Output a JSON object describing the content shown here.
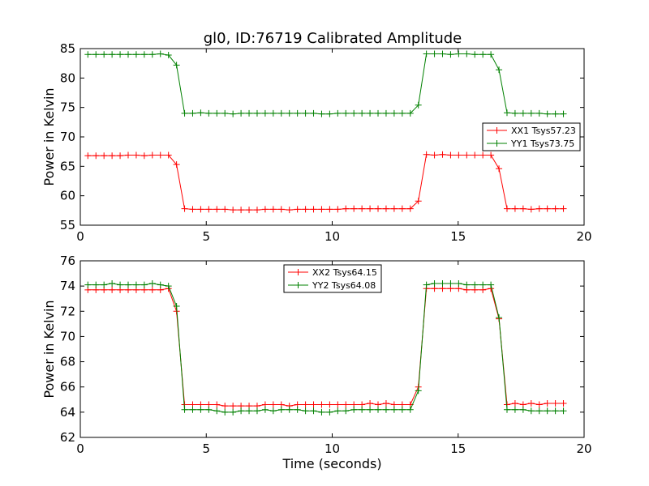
{
  "chart_data": [
    {
      "type": "line",
      "title": "gl0, ID:76719 Calibrated Amplitude",
      "xlabel": "",
      "ylabel": "Power in Kelvin",
      "xlim": [
        0,
        20
      ],
      "ylim": [
        55,
        85
      ],
      "xticks": [
        "0",
        "5",
        "10",
        "15",
        "20"
      ],
      "yticks": [
        "55",
        "60",
        "65",
        "70",
        "75",
        "80",
        "85"
      ],
      "grid": false,
      "legend_position": "center-right",
      "x": [
        0.3,
        0.62,
        0.94,
        1.26,
        1.58,
        1.9,
        2.22,
        2.54,
        2.86,
        3.18,
        3.5,
        3.82,
        4.14,
        4.46,
        4.78,
        5.1,
        5.42,
        5.74,
        6.06,
        6.38,
        6.7,
        7.02,
        7.34,
        7.66,
        7.98,
        8.3,
        8.62,
        8.94,
        9.26,
        9.58,
        9.9,
        10.22,
        10.54,
        10.86,
        11.18,
        11.5,
        11.82,
        12.14,
        12.46,
        12.78,
        13.1,
        13.42,
        13.74,
        14.06,
        14.38,
        14.7,
        15.02,
        15.34,
        15.66,
        15.98,
        16.3,
        16.62,
        16.94,
        17.26,
        17.58,
        17.9,
        18.22,
        18.54,
        18.86,
        19.18
      ],
      "series": [
        {
          "name": "XX1 Tsys57.23",
          "color": "#ff0000",
          "values": [
            66.8,
            66.8,
            66.8,
            66.8,
            66.8,
            66.9,
            66.9,
            66.8,
            66.9,
            66.9,
            66.9,
            65.3,
            57.8,
            57.7,
            57.7,
            57.7,
            57.7,
            57.7,
            57.6,
            57.6,
            57.6,
            57.6,
            57.7,
            57.7,
            57.7,
            57.6,
            57.7,
            57.7,
            57.7,
            57.7,
            57.7,
            57.7,
            57.8,
            57.8,
            57.8,
            57.8,
            57.8,
            57.8,
            57.8,
            57.8,
            57.8,
            59.1,
            67.0,
            66.9,
            67.0,
            66.9,
            66.9,
            66.9,
            66.9,
            66.9,
            66.9,
            64.6,
            57.8,
            57.8,
            57.8,
            57.7,
            57.8,
            57.8,
            57.8,
            57.8
          ]
        },
        {
          "name": "YY1 Tsys73.75",
          "color": "#008000",
          "values": [
            84.0,
            84.0,
            84.0,
            84.0,
            84.0,
            84.0,
            84.0,
            84.0,
            84.0,
            84.1,
            83.9,
            82.2,
            74.0,
            74.0,
            74.1,
            74.0,
            74.0,
            74.0,
            73.9,
            74.0,
            74.0,
            74.0,
            74.0,
            74.0,
            74.0,
            74.0,
            74.0,
            74.0,
            74.0,
            73.9,
            73.9,
            74.0,
            74.0,
            74.0,
            74.0,
            74.0,
            74.0,
            74.0,
            74.0,
            74.0,
            74.0,
            75.4,
            84.1,
            84.1,
            84.1,
            84.0,
            84.1,
            84.1,
            84.0,
            84.0,
            84.0,
            81.4,
            74.1,
            74.0,
            74.0,
            74.0,
            74.0,
            73.9,
            73.9,
            73.9
          ]
        }
      ]
    },
    {
      "type": "line",
      "title": "",
      "xlabel": "Time (seconds)",
      "ylabel": "Power in Kelvin",
      "xlim": [
        0,
        20
      ],
      "ylim": [
        62,
        76
      ],
      "xticks": [
        "0",
        "5",
        "10",
        "15",
        "20"
      ],
      "yticks": [
        "62",
        "64",
        "66",
        "68",
        "70",
        "72",
        "74",
        "76"
      ],
      "grid": false,
      "legend_position": "top-center",
      "x": [
        0.3,
        0.62,
        0.94,
        1.26,
        1.58,
        1.9,
        2.22,
        2.54,
        2.86,
        3.18,
        3.5,
        3.82,
        4.14,
        4.46,
        4.78,
        5.1,
        5.42,
        5.74,
        6.06,
        6.38,
        6.7,
        7.02,
        7.34,
        7.66,
        7.98,
        8.3,
        8.62,
        8.94,
        9.26,
        9.58,
        9.9,
        10.22,
        10.54,
        10.86,
        11.18,
        11.5,
        11.82,
        12.14,
        12.46,
        12.78,
        13.1,
        13.42,
        13.74,
        14.06,
        14.38,
        14.7,
        15.02,
        15.34,
        15.66,
        15.98,
        16.3,
        16.62,
        16.94,
        17.26,
        17.58,
        17.9,
        18.22,
        18.54,
        18.86,
        19.18
      ],
      "series": [
        {
          "name": "XX2 Tsys64.15",
          "color": "#ff0000",
          "values": [
            73.7,
            73.7,
            73.7,
            73.7,
            73.7,
            73.7,
            73.7,
            73.7,
            73.7,
            73.7,
            73.8,
            72.0,
            64.6,
            64.6,
            64.6,
            64.6,
            64.6,
            64.5,
            64.5,
            64.5,
            64.5,
            64.5,
            64.6,
            64.6,
            64.6,
            64.5,
            64.6,
            64.6,
            64.6,
            64.6,
            64.6,
            64.6,
            64.6,
            64.6,
            64.6,
            64.7,
            64.6,
            64.7,
            64.6,
            64.6,
            64.6,
            66.0,
            73.8,
            73.8,
            73.8,
            73.8,
            73.8,
            73.7,
            73.7,
            73.7,
            73.8,
            71.4,
            64.6,
            64.7,
            64.6,
            64.7,
            64.6,
            64.7,
            64.7,
            64.7
          ]
        },
        {
          "name": "YY2 Tsys64.08",
          "color": "#008000",
          "values": [
            74.1,
            74.1,
            74.1,
            74.2,
            74.1,
            74.1,
            74.1,
            74.1,
            74.2,
            74.1,
            74.0,
            72.4,
            64.2,
            64.2,
            64.2,
            64.2,
            64.1,
            64.0,
            64.0,
            64.1,
            64.1,
            64.1,
            64.2,
            64.1,
            64.2,
            64.2,
            64.2,
            64.1,
            64.1,
            64.0,
            64.0,
            64.1,
            64.1,
            64.2,
            64.2,
            64.2,
            64.2,
            64.2,
            64.2,
            64.2,
            64.2,
            65.7,
            74.1,
            74.2,
            74.2,
            74.2,
            74.2,
            74.1,
            74.1,
            74.1,
            74.1,
            71.5,
            64.2,
            64.2,
            64.2,
            64.1,
            64.1,
            64.1,
            64.1,
            64.1
          ]
        }
      ]
    }
  ]
}
